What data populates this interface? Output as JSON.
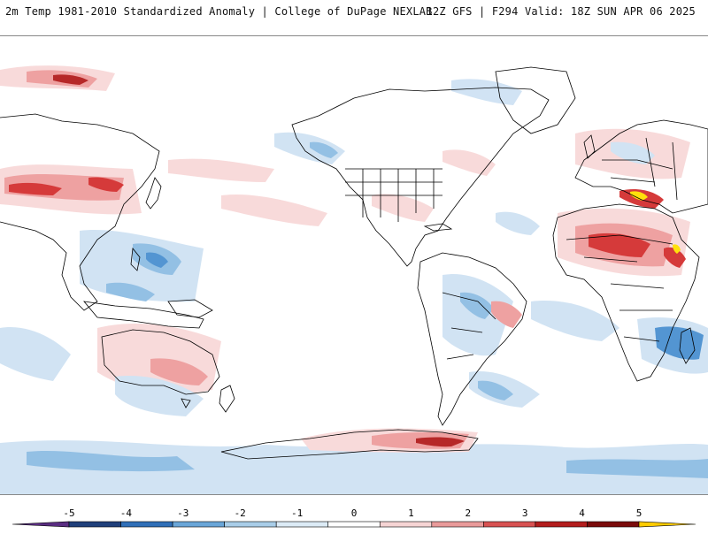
{
  "header": {
    "left": "2m Temp 1981-2010 Standardized Anomaly | College of DuPage NEXLAB",
    "right": "12Z GFS | F294 Valid: 18Z SUN APR 06 2025"
  },
  "colorbar": {
    "ticks": [
      "-5",
      "-4",
      "-3",
      "-2",
      "-1",
      "0",
      "1",
      "2",
      "3",
      "4",
      "5"
    ],
    "colors": [
      "#5a2d82",
      "#1f3f7a",
      "#2f6fb8",
      "#6aa6d8",
      "#a9cde8",
      "#dcebf6",
      "#ffffff",
      "#f6d4d4",
      "#e99a9a",
      "#d85252",
      "#b31d1d",
      "#7a0b0b",
      "#ffcc00"
    ]
  },
  "map": {
    "land_color": "#ffffff",
    "border_color": "#000000",
    "colors": {
      "cold_light": "#cfe2f3",
      "cold_mid": "#8ebde3",
      "cold_strong": "#4a90d0",
      "warm_light": "#f8d9d9",
      "warm_mid": "#ee9d9d",
      "warm_strong": "#d33030",
      "warm_extreme": "#8b0d0d",
      "extreme_hot": "#ffe000"
    }
  }
}
